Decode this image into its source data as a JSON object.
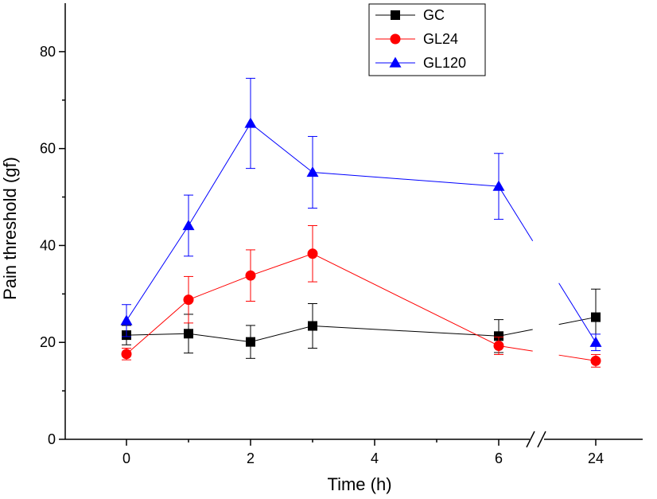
{
  "chart_data": {
    "type": "line",
    "title": "",
    "xlabel": "Time (h)",
    "ylabel": "Pain threshold (gf)",
    "ylim": [
      0,
      90
    ],
    "x_tick_values": [
      0,
      2,
      4,
      6,
      24
    ],
    "y_tick_values": [
      0,
      20,
      40,
      60,
      80
    ],
    "x_break_between": [
      6,
      24
    ],
    "x": [
      0,
      1,
      2,
      3,
      6,
      24
    ],
    "legend_position": "top-right",
    "series": [
      {
        "name": "GC",
        "color": "#000000",
        "marker": "square",
        "values": [
          21.5,
          21.8,
          20.1,
          23.4,
          21.3,
          25.2
        ],
        "errors": [
          2.0,
          4.0,
          3.4,
          4.6,
          3.4,
          5.8
        ]
      },
      {
        "name": "GL24",
        "color": "#ff0000",
        "marker": "circle",
        "values": [
          17.6,
          28.8,
          33.8,
          38.3,
          19.3,
          16.2
        ],
        "errors": [
          1.2,
          4.8,
          5.3,
          5.8,
          1.8,
          1.3
        ]
      },
      {
        "name": "GL120",
        "color": "#0000ff",
        "marker": "triangle",
        "values": [
          24.5,
          44.1,
          65.2,
          55.1,
          52.2,
          20.0
        ],
        "errors": [
          3.3,
          6.3,
          9.3,
          7.4,
          6.8,
          1.7
        ]
      }
    ]
  }
}
